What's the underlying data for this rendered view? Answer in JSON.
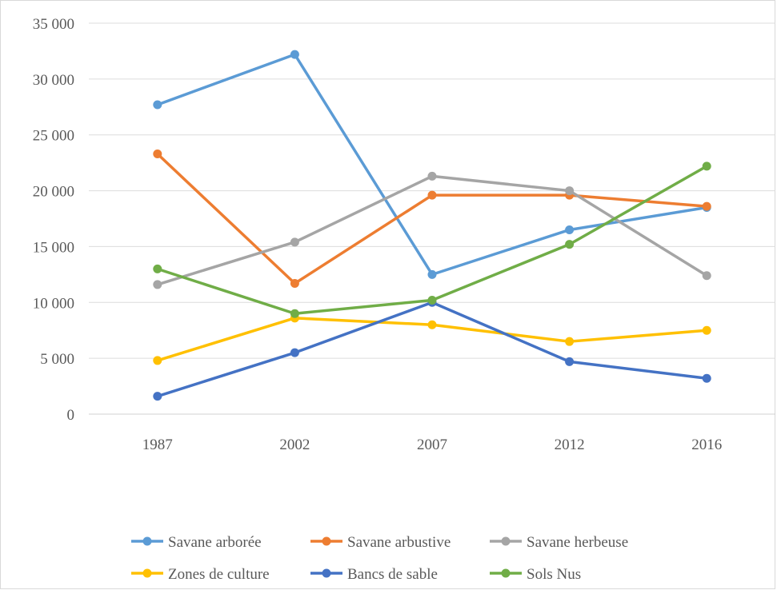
{
  "chart_data": {
    "type": "line",
    "title": "",
    "xlabel": "",
    "ylabel": "",
    "categories": [
      "1987",
      "2002",
      "2007",
      "2012",
      "2016"
    ],
    "ylim": [
      0,
      35000
    ],
    "yticks": [
      0,
      5000,
      10000,
      15000,
      20000,
      25000,
      30000,
      35000
    ],
    "ytick_labels": [
      "0",
      "5 000",
      "10 000",
      "15 000",
      "20 000",
      "25 000",
      "30 000",
      "35 000"
    ],
    "grid": "horizontal",
    "legend_position": "bottom",
    "series": [
      {
        "name": "Savane arborée",
        "color": "#5b9bd5",
        "values": [
          27700,
          32200,
          12500,
          16500,
          18500
        ]
      },
      {
        "name": "Savane arbustive",
        "color": "#ed7d31",
        "values": [
          23300,
          11700,
          19600,
          19600,
          18600
        ]
      },
      {
        "name": "Savane herbeuse",
        "color": "#a5a5a5",
        "values": [
          11600,
          15400,
          21300,
          20000,
          12400
        ]
      },
      {
        "name": "Zones de culture",
        "color": "#ffc000",
        "values": [
          4800,
          8600,
          8000,
          6500,
          7500
        ]
      },
      {
        "name": "Bancs de sable",
        "color": "#4472c4",
        "values": [
          1600,
          5500,
          10000,
          4700,
          3200
        ]
      },
      {
        "name": "Sols Nus",
        "color": "#70ad47",
        "values": [
          13000,
          9000,
          10200,
          15200,
          22200
        ]
      }
    ]
  }
}
